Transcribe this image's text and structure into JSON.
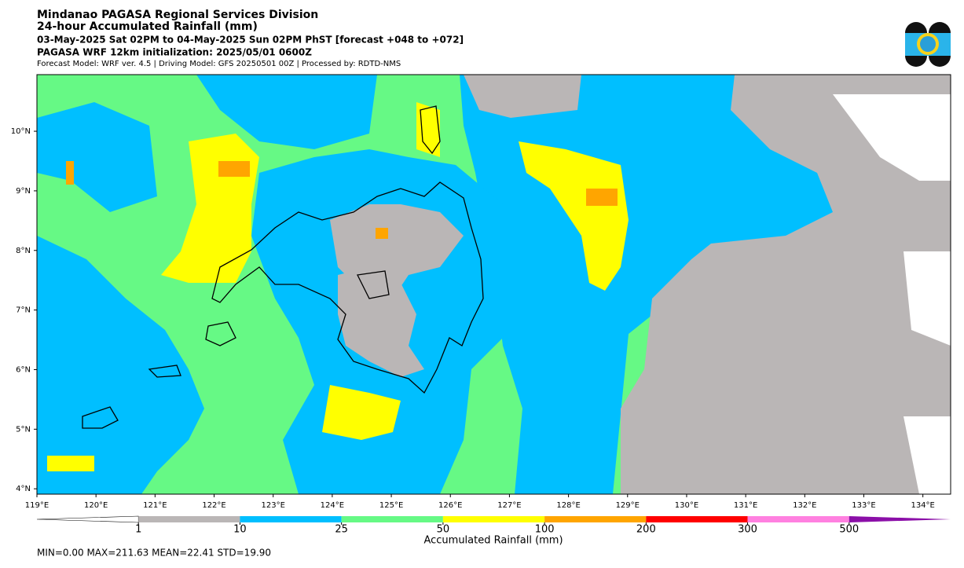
{
  "header": {
    "title": "Mindanao PAGASA Regional Services Division",
    "subtitle": "24-hour Accumulated Rainfall (mm)",
    "period": "03-May-2025 Sat 02PM to 04-May-2025 Sun 02PM PhST [forecast +048 to +072]",
    "initialization": "PAGASA WRF 12km initialization: 2025/05/01 0600Z",
    "model_info": "Forecast Model: WRF ver. 4.5 | Driving Model: GFS 20250501 00Z | Processed by: RDTD-NMS"
  },
  "map": {
    "xlim": [
      119,
      134.47
    ],
    "ylim": [
      3.91,
      10.95
    ],
    "xticks": [
      {
        "value": 119,
        "label": "119°E"
      },
      {
        "value": 120,
        "label": "120°E"
      },
      {
        "value": 121,
        "label": "121°E"
      },
      {
        "value": 122,
        "label": "122°E"
      },
      {
        "value": 123,
        "label": "123°E"
      },
      {
        "value": 124,
        "label": "124°E"
      },
      {
        "value": 125,
        "label": "125°E"
      },
      {
        "value": 126,
        "label": "126°E"
      },
      {
        "value": 127,
        "label": "127°E"
      },
      {
        "value": 128,
        "label": "128°E"
      },
      {
        "value": 129,
        "label": "129°E"
      },
      {
        "value": 130,
        "label": "130°E"
      },
      {
        "value": 131,
        "label": "131°E"
      },
      {
        "value": 132,
        "label": "132°E"
      },
      {
        "value": 133,
        "label": "133°E"
      },
      {
        "value": 134,
        "label": "134°E"
      }
    ],
    "yticks": [
      {
        "value": 4,
        "label": "4°N"
      },
      {
        "value": 5,
        "label": "5°N"
      },
      {
        "value": 6,
        "label": "6°N"
      },
      {
        "value": 7,
        "label": "7°N"
      },
      {
        "value": 8,
        "label": "8°N"
      },
      {
        "value": 9,
        "label": "9°N"
      },
      {
        "value": 10,
        "label": "10°N"
      }
    ]
  },
  "colorbar": {
    "label": "Accumulated Rainfall (mm)",
    "ticks": [
      1,
      10,
      25,
      50,
      100,
      200,
      300,
      500
    ],
    "colors": [
      "#bab6b6",
      "#00bfff",
      "#66f985",
      "#ffff00",
      "#ffa500",
      "#ff0000",
      "#ff80e0",
      "#8b0fa8"
    ],
    "under_color": "#ffffff"
  },
  "stats": "MIN=0.00   MAX=211.63   MEAN=22.41   STD=19.90"
}
